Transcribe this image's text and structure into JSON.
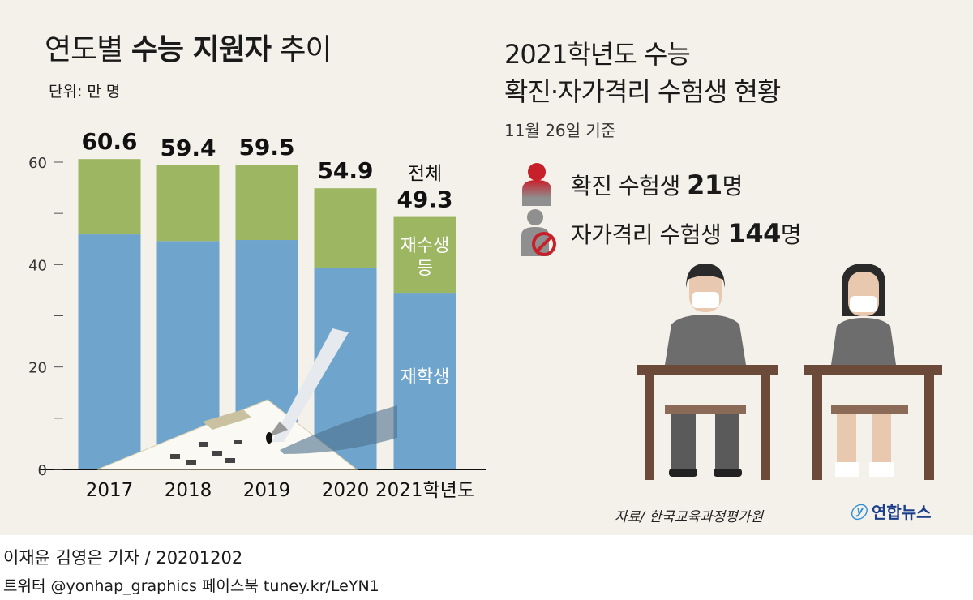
{
  "left": {
    "title_light_1": "연도별 ",
    "title_bold": "수능 지원자",
    "title_light_2": " 추이",
    "unit": "단위: 만 명"
  },
  "chart_data": {
    "type": "bar",
    "stacked": true,
    "categories": [
      "2017",
      "2018",
      "2019",
      "2020",
      "2021학년도"
    ],
    "series": [
      {
        "name": "재학생",
        "values": [
          45.9,
          44.6,
          44.8,
          39.4,
          34.5
        ],
        "color": "#6fa5cd"
      },
      {
        "name": "재수생 등",
        "values": [
          14.7,
          14.8,
          14.7,
          15.5,
          14.8
        ],
        "color": "#9cb662"
      }
    ],
    "totals": [
      60.6,
      59.4,
      59.5,
      54.9,
      49.3
    ],
    "total_label_last": "전체",
    "inbar_labels": {
      "top_line1": "재수생",
      "top_line2": "등",
      "bottom": "재학생"
    },
    "yticks": [
      "0",
      "20",
      "40",
      "60"
    ],
    "ylim": [
      0,
      60
    ]
  },
  "right": {
    "title_line1": "2021학년도 수능",
    "title_line2": "확진·자가격리 수험생 현황",
    "basis": "11월 26일 기준",
    "confirmed_label": "확진 수험생 ",
    "confirmed_value": "21",
    "confirmed_unit": "명",
    "quarantine_label": "자가격리 수험생 ",
    "quarantine_value": "144",
    "quarantine_unit": "명",
    "confirmed_color": "#c8202a"
  },
  "source": "자료/ 한국교육과정평가원",
  "logo": "연합뉴스",
  "byline": "이재윤 김영은 기자 / 20201202",
  "social": "트위터 @yonhap_graphics  페이스북 tuney.kr/LeYN1"
}
